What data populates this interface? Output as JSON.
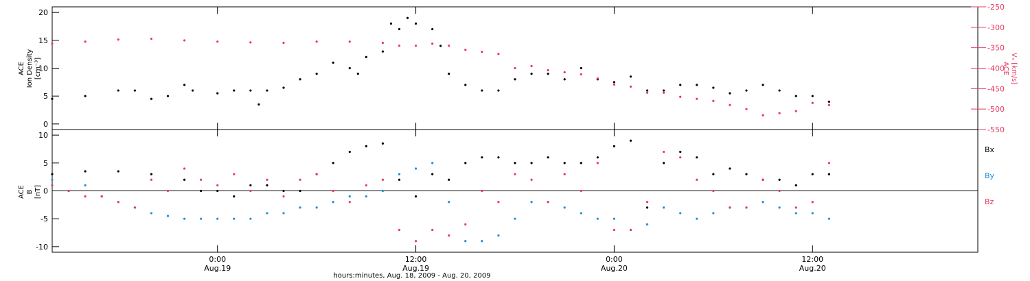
{
  "colors": {
    "black": "#000000",
    "pink": "#e8385f",
    "blue": "#1a8ce0"
  },
  "xaxis": {
    "title": "hours:minutes, Aug. 18, 2009 - Aug. 20, 2009",
    "range_hours": [
      -10,
      46
    ],
    "ticks": [
      {
        "hour": 0,
        "time": "0:00",
        "date": "Aug.19"
      },
      {
        "hour": 12,
        "time": "12:00",
        "date": "Aug.19"
      },
      {
        "hour": 24,
        "time": "0:00",
        "date": "Aug.20"
      },
      {
        "hour": 36,
        "time": "12:00",
        "date": "Aug.20"
      }
    ]
  },
  "chart_data": [
    {
      "type": "scatter",
      "panel": "top",
      "ylabel_left": [
        "ACE",
        "Ion Density",
        "[cm⁻³]"
      ],
      "ylabel_right": [
        "ACE",
        "Vₓ [km/s]"
      ],
      "left_ylim": [
        -1,
        21
      ],
      "left_ticks": [
        0,
        5,
        10,
        15,
        20
      ],
      "right_ylim": [
        -550,
        -250
      ],
      "right_ticks": [
        -250,
        -300,
        -350,
        -400,
        -450,
        -500,
        -550
      ],
      "series": [
        {
          "axis": "left",
          "color": "black",
          "x": [
            -10,
            -8,
            -6,
            -5,
            -4,
            -3,
            -2,
            -1.5,
            0,
            1,
            2,
            2.5,
            3,
            4,
            5,
            6,
            7,
            8,
            8.5,
            9,
            10,
            10.5,
            11,
            11.5,
            12,
            13,
            13.5,
            14,
            15,
            16,
            17,
            18,
            19,
            20,
            21,
            22,
            23,
            24,
            25,
            26,
            27,
            28,
            29,
            30,
            31,
            32,
            33,
            34,
            35,
            36,
            37
          ],
          "y": [
            4.5,
            5,
            6,
            6,
            4.5,
            5,
            7,
            6,
            5.5,
            6,
            6,
            3.5,
            6,
            6.5,
            8,
            9,
            11,
            10,
            9,
            12,
            13,
            18,
            17,
            19,
            18,
            17,
            14,
            9,
            7,
            6,
            6,
            8,
            9,
            9,
            8,
            10,
            8,
            7.5,
            8.5,
            6,
            6,
            7,
            7,
            6.5,
            5.5,
            6,
            7,
            6,
            5,
            5,
            4
          ]
        },
        {
          "axis": "right",
          "color": "pink",
          "x": [
            -10,
            -8,
            -6,
            -4,
            -2,
            0,
            2,
            4,
            6,
            8,
            10,
            11,
            12,
            13,
            14,
            15,
            16,
            17,
            18,
            19,
            20,
            21,
            22,
            23,
            24,
            25,
            26,
            27,
            28,
            29,
            30,
            31,
            32,
            33,
            34,
            35,
            36,
            37
          ],
          "y": [
            -340,
            -335,
            -330,
            -328,
            -332,
            -335,
            -337,
            -338,
            -335,
            -335,
            -338,
            -345,
            -345,
            -340,
            -345,
            -355,
            -360,
            -365,
            -400,
            -395,
            -405,
            -410,
            -415,
            -425,
            -440,
            -445,
            -460,
            -460,
            -470,
            -475,
            -480,
            -490,
            -500,
            -515,
            -510,
            -505,
            -485,
            -490
          ]
        }
      ]
    },
    {
      "type": "scatter",
      "panel": "bottom",
      "ylabel_left": [
        "ACE",
        "B",
        "[nT]"
      ],
      "ylim": [
        -11,
        11
      ],
      "ticks": [
        -10,
        -5,
        0,
        5,
        10
      ],
      "series": [
        {
          "name": "Bx",
          "color": "black",
          "x": [
            -10,
            -8,
            -6,
            -4,
            -2,
            -1,
            0,
            1,
            2,
            3,
            4,
            5,
            6,
            7,
            8,
            9,
            10,
            11,
            12,
            13,
            14,
            15,
            16,
            17,
            18,
            19,
            20,
            21,
            22,
            23,
            24,
            25,
            26,
            27,
            28,
            29,
            30,
            31,
            32,
            33,
            34,
            35,
            36,
            37
          ],
          "y": [
            3,
            3.5,
            3.5,
            3,
            2,
            0,
            0,
            -1,
            1,
            1,
            0,
            0,
            3,
            5,
            7,
            8,
            8.5,
            2,
            -1,
            3,
            2,
            5,
            6,
            6,
            5,
            5,
            6,
            5,
            5,
            6,
            8,
            9,
            -3,
            5,
            7,
            6,
            3,
            4,
            3,
            2,
            2,
            1,
            3,
            3
          ]
        },
        {
          "name": "By",
          "color": "blue",
          "x": [
            -10,
            -9,
            -8,
            -7,
            -6,
            -5,
            -4,
            -3,
            -2,
            -1,
            0,
            1,
            2,
            3,
            4,
            5,
            6,
            7,
            8,
            9,
            10,
            11,
            12,
            13,
            14,
            15,
            16,
            17,
            18,
            19,
            20,
            21,
            22,
            23,
            24,
            25,
            26,
            27,
            28,
            29,
            30,
            31,
            32,
            33,
            34,
            35,
            36,
            37
          ],
          "y": [
            2,
            0,
            1,
            -1,
            -2,
            -3,
            -4,
            -4.5,
            -5,
            -5,
            -5,
            -5,
            -5,
            -4,
            -4,
            -3,
            -3,
            -2,
            -1,
            -1,
            0,
            3,
            4,
            5,
            -2,
            -9,
            -9,
            -8,
            -5,
            -2,
            -2,
            -3,
            -4,
            -5,
            -5,
            -7,
            -6,
            -3,
            -4,
            -5,
            -4,
            -3,
            -3,
            -2,
            -3,
            -4,
            -4,
            -5
          ]
        },
        {
          "name": "Bz",
          "color": "pink",
          "x": [
            -10,
            -9,
            -8,
            -7,
            -6,
            -5,
            -4,
            -3,
            -2,
            -1,
            0,
            1,
            2,
            3,
            4,
            5,
            6,
            7,
            8,
            9,
            10,
            11,
            12,
            13,
            14,
            15,
            16,
            17,
            18,
            19,
            20,
            21,
            22,
            23,
            24,
            25,
            26,
            27,
            28,
            29,
            30,
            31,
            32,
            33,
            34,
            35,
            36,
            37
          ],
          "y": [
            1,
            0,
            -1,
            -1,
            -2,
            -3,
            2,
            0,
            4,
            2,
            1,
            3,
            0,
            2,
            -1,
            2,
            3,
            0,
            -2,
            1,
            2,
            -7,
            -9,
            -7,
            -8,
            -6,
            0,
            -2,
            3,
            2,
            -2,
            3,
            0,
            5,
            -7,
            -7,
            -2,
            7,
            6,
            2,
            0,
            -3,
            -3,
            2,
            0,
            -3,
            -2,
            5
          ]
        }
      ]
    }
  ]
}
